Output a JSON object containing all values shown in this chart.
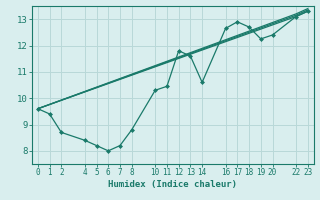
{
  "xlabel": "Humidex (Indice chaleur)",
  "bg_color": "#d9eeee",
  "grid_color": "#b8d8d8",
  "line_color": "#1a7a6a",
  "xlim": [
    -0.5,
    23.5
  ],
  "ylim": [
    7.5,
    13.5
  ],
  "xticks": [
    0,
    1,
    2,
    4,
    5,
    6,
    7,
    8,
    10,
    11,
    12,
    13,
    14,
    16,
    17,
    18,
    19,
    20,
    22,
    23
  ],
  "yticks": [
    8,
    9,
    10,
    11,
    12,
    13
  ],
  "series": [
    {
      "x": [
        0,
        1,
        2,
        4,
        5,
        6,
        7,
        8,
        10,
        11,
        12,
        13,
        14,
        16,
        17,
        18,
        19,
        20,
        22,
        23
      ],
      "y": [
        9.6,
        9.4,
        8.7,
        8.4,
        8.2,
        8.0,
        8.2,
        8.8,
        10.3,
        10.45,
        11.8,
        11.6,
        10.6,
        12.65,
        12.9,
        12.7,
        12.25,
        12.4,
        13.1,
        13.3
      ],
      "marker": "D",
      "ms": 2.0,
      "lw": 0.9
    },
    {
      "x": [
        0,
        22,
        23
      ],
      "y": [
        9.6,
        13.1,
        13.3
      ],
      "marker": null,
      "ms": 0,
      "lw": 0.9
    },
    {
      "x": [
        0,
        22,
        23
      ],
      "y": [
        9.6,
        13.15,
        13.35
      ],
      "marker": null,
      "ms": 0,
      "lw": 0.9
    },
    {
      "x": [
        0,
        22,
        23
      ],
      "y": [
        9.6,
        13.2,
        13.4
      ],
      "marker": null,
      "ms": 0,
      "lw": 0.9
    }
  ]
}
